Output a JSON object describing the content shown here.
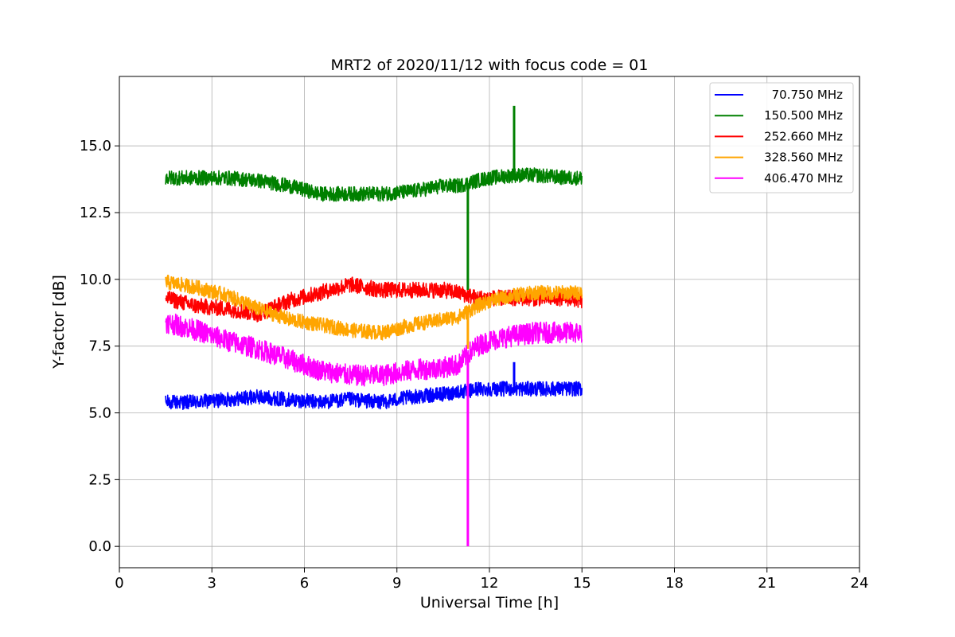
{
  "chart_data": {
    "type": "line",
    "title": "MRT2 of 2020/11/12 with focus code = 01",
    "xlabel": "Universal Time [h]",
    "ylabel": "Y-factor [dB]",
    "xlim": [
      0,
      24
    ],
    "ylim": [
      -0.8,
      17.6
    ],
    "xticks": [
      0,
      3,
      6,
      9,
      12,
      15,
      18,
      21,
      24
    ],
    "yticks": [
      0.0,
      2.5,
      5.0,
      7.5,
      10.0,
      12.5,
      15.0
    ],
    "ytick_labels": [
      "0.0",
      "2.5",
      "5.0",
      "7.5",
      "10.0",
      "12.5",
      "15.0"
    ],
    "grid": true,
    "legend_position": "top-right",
    "x": [
      1.5,
      2.5,
      3.5,
      4.5,
      5.5,
      6.5,
      7.5,
      8.5,
      9.5,
      10.5,
      11.0,
      11.3,
      11.6,
      12.0,
      12.8,
      13.5,
      14.5,
      15.0
    ],
    "series": [
      {
        "name": "70.750 MHz",
        "color": "#0000ff",
        "noise": 0.55,
        "values": [
          5.4,
          5.4,
          5.5,
          5.6,
          5.5,
          5.4,
          5.5,
          5.4,
          5.6,
          5.7,
          5.8,
          5.8,
          5.9,
          5.9,
          5.9,
          5.9,
          5.9,
          5.9
        ],
        "spikes": [
          {
            "x": 12.8,
            "y": 6.9
          }
        ]
      },
      {
        "name": "150.500 MHz",
        "color": "#008000",
        "noise": 0.55,
        "values": [
          13.8,
          13.8,
          13.8,
          13.7,
          13.5,
          13.2,
          13.2,
          13.2,
          13.3,
          13.5,
          13.5,
          13.6,
          13.7,
          13.8,
          13.9,
          13.9,
          13.8,
          13.8
        ],
        "spikes": [
          {
            "x": 11.3,
            "y": 9.6
          },
          {
            "x": 12.8,
            "y": 16.5
          }
        ]
      },
      {
        "name": "252.660 MHz",
        "color": "#ff0000",
        "noise": 0.6,
        "values": [
          9.3,
          9.0,
          8.9,
          8.7,
          9.2,
          9.5,
          9.8,
          9.6,
          9.6,
          9.6,
          9.5,
          9.4,
          9.3,
          9.3,
          9.3,
          9.3,
          9.3,
          9.2
        ],
        "spikes": []
      },
      {
        "name": "328.560 MHz",
        "color": "#ffa500",
        "noise": 0.55,
        "values": [
          9.9,
          9.7,
          9.4,
          8.9,
          8.5,
          8.3,
          8.1,
          8.0,
          8.3,
          8.5,
          8.6,
          8.8,
          9.0,
          9.2,
          9.4,
          9.5,
          9.5,
          9.5
        ],
        "spikes": [
          {
            "x": 11.3,
            "y": 7.4
          }
        ]
      },
      {
        "name": "406.470 MHz",
        "color": "#ff00ff",
        "noise": 0.8,
        "values": [
          8.4,
          8.1,
          7.7,
          7.4,
          7.0,
          6.6,
          6.4,
          6.4,
          6.6,
          6.7,
          6.8,
          7.2,
          7.5,
          7.7,
          7.9,
          8.0,
          8.0,
          8.0
        ],
        "spikes": [
          {
            "x": 11.3,
            "y": 0.0
          }
        ]
      }
    ]
  }
}
